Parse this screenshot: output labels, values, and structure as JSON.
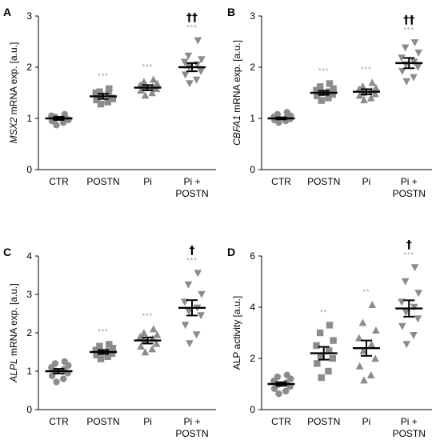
{
  "chart_data": [
    {
      "type": "scatter",
      "panel": "A",
      "ylabel_italic": "MSX2",
      "ylabel_rest": " mRNA exp. [a.u.]",
      "ylim": [
        0,
        3
      ],
      "yticks": [
        "0",
        "1",
        "2",
        "3"
      ],
      "categories": [
        {
          "lines": [
            "CTR"
          ]
        },
        {
          "lines": [
            "POSTN"
          ]
        },
        {
          "lines": [
            "Pi"
          ]
        },
        {
          "lines": [
            "Pi +",
            "POSTN"
          ]
        }
      ],
      "groups": [
        {
          "marker": "circle",
          "mean": 1.0,
          "sem": 0.03,
          "points": [
            0.87,
            0.92,
            0.95,
            0.98,
            1.0,
            1.02,
            1.05,
            0.97,
            1.03,
            1.08
          ],
          "sig": "",
          "dagger": ""
        },
        {
          "marker": "square",
          "mean": 1.43,
          "sem": 0.05,
          "points": [
            1.28,
            1.32,
            1.36,
            1.4,
            1.45,
            1.48,
            1.5,
            1.38,
            1.52,
            1.58
          ],
          "sig": "***",
          "dagger": ""
        },
        {
          "marker": "triangle-up",
          "mean": 1.6,
          "sem": 0.05,
          "points": [
            1.45,
            1.5,
            1.55,
            1.58,
            1.6,
            1.62,
            1.65,
            1.68,
            1.72,
            1.76
          ],
          "sig": "***",
          "dagger": ""
        },
        {
          "marker": "triangle-down",
          "mean": 2.0,
          "sem": 0.08,
          "points": [
            1.68,
            1.75,
            1.85,
            1.92,
            2.0,
            2.05,
            2.1,
            2.15,
            2.22,
            2.52
          ],
          "sig": "***",
          "dagger": "††"
        }
      ]
    },
    {
      "type": "scatter",
      "panel": "B",
      "ylabel_italic": "CBFA1",
      "ylabel_rest": " mRNA exp. [a.u.]",
      "ylim": [
        0,
        3
      ],
      "yticks": [
        "0",
        "1",
        "2",
        "3"
      ],
      "categories": [
        {
          "lines": [
            "CTR"
          ]
        },
        {
          "lines": [
            "POSTN"
          ]
        },
        {
          "lines": [
            "Pi"
          ]
        },
        {
          "lines": [
            "Pi +",
            "POSTN"
          ]
        }
      ],
      "groups": [
        {
          "marker": "circle",
          "mean": 1.0,
          "sem": 0.02,
          "points": [
            0.92,
            0.95,
            0.97,
            0.99,
            1.0,
            1.01,
            1.03,
            1.05,
            1.08,
            1.12
          ],
          "sig": "",
          "dagger": ""
        },
        {
          "marker": "square",
          "mean": 1.5,
          "sem": 0.04,
          "points": [
            1.35,
            1.4,
            1.44,
            1.47,
            1.5,
            1.52,
            1.55,
            1.58,
            1.62,
            1.68
          ],
          "sig": "***",
          "dagger": ""
        },
        {
          "marker": "triangle-up",
          "mean": 1.52,
          "sem": 0.05,
          "points": [
            1.36,
            1.4,
            1.45,
            1.48,
            1.5,
            1.54,
            1.57,
            1.6,
            1.63,
            1.7
          ],
          "sig": "***",
          "dagger": ""
        },
        {
          "marker": "triangle-down",
          "mean": 2.08,
          "sem": 0.1,
          "points": [
            1.72,
            1.8,
            1.92,
            2.0,
            2.05,
            2.1,
            2.18,
            2.28,
            2.38,
            2.48
          ],
          "sig": "***",
          "dagger": "††"
        }
      ]
    },
    {
      "type": "scatter",
      "panel": "C",
      "ylabel_italic": "ALPL",
      "ylabel_rest": " mRNA exp. [a.u.]",
      "ylim": [
        0,
        4
      ],
      "yticks": [
        "0",
        "1",
        "2",
        "3",
        "4"
      ],
      "categories": [
        {
          "lines": [
            "CTR"
          ]
        },
        {
          "lines": [
            "POSTN"
          ]
        },
        {
          "lines": [
            "Pi"
          ]
        },
        {
          "lines": [
            "Pi +",
            "POSTN"
          ]
        }
      ],
      "groups": [
        {
          "marker": "circle",
          "mean": 1.0,
          "sem": 0.06,
          "points": [
            0.72,
            0.8,
            0.88,
            0.95,
            1.0,
            1.05,
            1.1,
            1.15,
            1.2,
            1.25
          ],
          "sig": "",
          "dagger": ""
        },
        {
          "marker": "square",
          "mean": 1.5,
          "sem": 0.05,
          "points": [
            1.32,
            1.38,
            1.42,
            1.46,
            1.5,
            1.52,
            1.55,
            1.6,
            1.65,
            1.7
          ],
          "sig": "***",
          "dagger": ""
        },
        {
          "marker": "triangle-up",
          "mean": 1.8,
          "sem": 0.08,
          "points": [
            1.5,
            1.58,
            1.65,
            1.72,
            1.8,
            1.85,
            1.9,
            1.95,
            2.0,
            2.1
          ],
          "sig": "***",
          "dagger": ""
        },
        {
          "marker": "triangle-down",
          "mean": 2.65,
          "sem": 0.2,
          "points": [
            1.72,
            1.95,
            2.2,
            2.45,
            2.55,
            2.65,
            2.8,
            3.0,
            3.25,
            3.55
          ],
          "sig": "***",
          "dagger": "†"
        }
      ]
    },
    {
      "type": "scatter",
      "panel": "D",
      "ylabel_italic": "",
      "ylabel_rest": "ALP activity [a.u.]",
      "ylim": [
        0,
        6
      ],
      "yticks": [
        "0",
        "2",
        "4",
        "6"
      ],
      "categories": [
        {
          "lines": [
            "CTR"
          ]
        },
        {
          "lines": [
            "POSTN"
          ]
        },
        {
          "lines": [
            "Pi"
          ]
        },
        {
          "lines": [
            "Pi +",
            "POSTN"
          ]
        }
      ],
      "groups": [
        {
          "marker": "circle",
          "mean": 1.0,
          "sem": 0.07,
          "points": [
            0.62,
            0.72,
            0.82,
            0.9,
            0.98,
            1.05,
            1.12,
            1.2,
            1.28,
            1.35
          ],
          "sig": "",
          "dagger": ""
        },
        {
          "marker": "square",
          "mean": 2.2,
          "sem": 0.25,
          "points": [
            1.25,
            1.5,
            1.8,
            2.0,
            2.1,
            2.3,
            2.5,
            2.7,
            3.0,
            3.3
          ],
          "sig": "**",
          "dagger": ""
        },
        {
          "marker": "triangle-up",
          "mean": 2.4,
          "sem": 0.3,
          "points": [
            1.15,
            1.35,
            1.7,
            2.0,
            2.3,
            2.55,
            2.8,
            3.1,
            3.4,
            4.1
          ],
          "sig": "**",
          "dagger": ""
        },
        {
          "marker": "triangle-down",
          "mean": 3.95,
          "sem": 0.32,
          "points": [
            2.55,
            2.9,
            3.25,
            3.55,
            3.8,
            4.0,
            4.2,
            4.55,
            5.0,
            5.55
          ],
          "sig": "***",
          "dagger": "†"
        }
      ]
    }
  ]
}
